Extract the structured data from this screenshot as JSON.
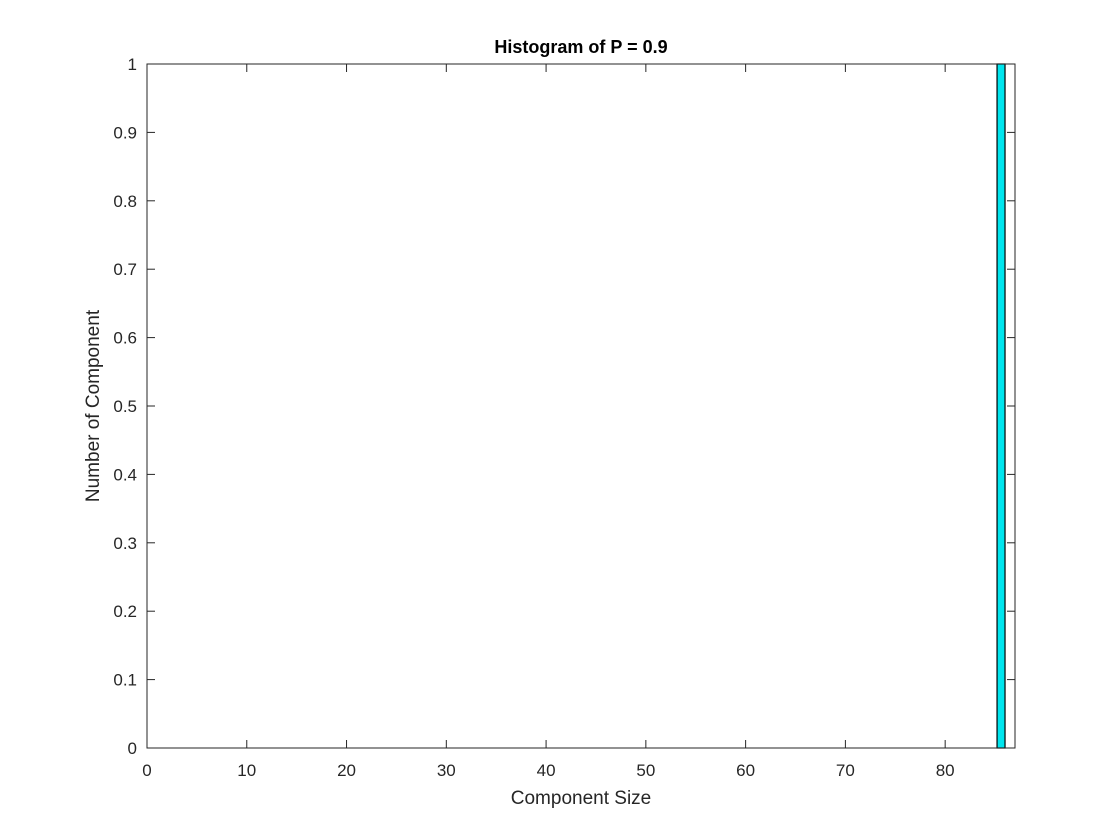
{
  "chart_data": {
    "type": "bar",
    "title": "Histogram of P = 0.9",
    "xlabel": "Component Size",
    "ylabel": "Number of Component",
    "xlim": [
      0,
      87
    ],
    "ylim": [
      0,
      1
    ],
    "x_ticks": [
      "0",
      "10",
      "20",
      "30",
      "40",
      "50",
      "60",
      "70",
      "80"
    ],
    "y_ticks": [
      "0",
      "0.1",
      "0.2",
      "0.3",
      "0.4",
      "0.5",
      "0.6",
      "0.7",
      "0.8",
      "0.9",
      "1"
    ],
    "bars": [
      {
        "x_start": 85.2,
        "x_end": 86.0,
        "value": 1
      }
    ],
    "bar_color": "#00e5ee",
    "grid": false,
    "legend": "none"
  }
}
